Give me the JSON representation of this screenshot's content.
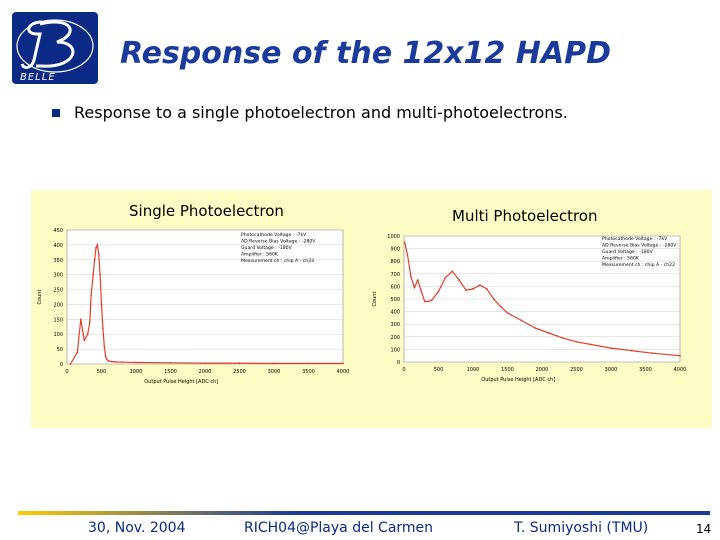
{
  "header": {
    "logo_text": "BELLE",
    "title": "Response of the 12x12 HAPD"
  },
  "bullet": "Response to a single photoelectron and multi-photoelectrons.",
  "charts": {
    "single_title": "Single Photoelectron",
    "multi_title": "Multi Photoelectron"
  },
  "chart_data": [
    {
      "type": "scatter",
      "title": "Single Photoelectron",
      "xlabel": "Output Pulse Height [ADC ch]",
      "ylabel": "Count",
      "xlim": [
        0,
        4000
      ],
      "ylim": [
        0,
        450
      ],
      "xticks": [
        0,
        500,
        1000,
        1500,
        2000,
        2500,
        3000,
        3500,
        4000
      ],
      "yticks": [
        0,
        50,
        100,
        150,
        200,
        250,
        300,
        350,
        400,
        450
      ],
      "grid": true,
      "color": "#e0402a",
      "annotation": [
        "Photocathode Voltage : -7kV",
        "AD Reverse Bias Voltage : -280V",
        "Guard Voltage : -180V",
        "Amplifier : 560K",
        "Measurement ch : chip A - ch33"
      ],
      "x": [
        50,
        150,
        200,
        250,
        300,
        330,
        350,
        380,
        400,
        420,
        440,
        460,
        480,
        500,
        520,
        540,
        560,
        580,
        600,
        650,
        700,
        800,
        1000,
        1500,
        2000,
        2500,
        3000,
        3500,
        4000
      ],
      "y": [
        0,
        40,
        150,
        80,
        100,
        140,
        230,
        300,
        350,
        390,
        400,
        370,
        300,
        200,
        120,
        60,
        25,
        15,
        10,
        8,
        7,
        6,
        5,
        4,
        3,
        3,
        2,
        2,
        2
      ]
    },
    {
      "type": "scatter",
      "title": "Multi Photoelectron",
      "xlabel": "Output Pulse Height [ADC ch]",
      "ylabel": "Count",
      "xlim": [
        0,
        4000
      ],
      "ylim": [
        0,
        1000
      ],
      "xticks": [
        0,
        500,
        1000,
        1500,
        2000,
        2500,
        3000,
        3500,
        4000
      ],
      "yticks": [
        0,
        100,
        200,
        300,
        400,
        500,
        600,
        700,
        800,
        900,
        1000
      ],
      "grid": true,
      "color": "#e0402a",
      "annotation": [
        "Photocathode Voltage : -7kV",
        "AD Reverse Bias Voltage : -280V",
        "Guard Voltage : -180V",
        "Amplifier : 560K",
        "Measurement ch : chip A - ch22"
      ],
      "x": [
        10,
        50,
        100,
        150,
        200,
        250,
        300,
        350,
        400,
        500,
        600,
        700,
        800,
        900,
        1000,
        1100,
        1200,
        1300,
        1400,
        1500,
        1700,
        1900,
        2100,
        2300,
        2500,
        2700,
        3000,
        3300,
        3600,
        4000
      ],
      "y": [
        950,
        850,
        680,
        590,
        650,
        560,
        480,
        480,
        490,
        560,
        670,
        720,
        650,
        570,
        580,
        610,
        580,
        500,
        440,
        390,
        330,
        270,
        230,
        190,
        160,
        140,
        110,
        90,
        70,
        50
      ]
    }
  ],
  "footer": {
    "date": "30, Nov. 2004",
    "event": "RICH04@Playa del Carmen",
    "author": "T. Sumiyoshi (TMU)",
    "page": "14"
  },
  "colors": {
    "navy": "#0a2a86",
    "title_blue": "#1a3a9c",
    "panel_bg": "#fdfcc4",
    "trace": "#e0402a"
  }
}
